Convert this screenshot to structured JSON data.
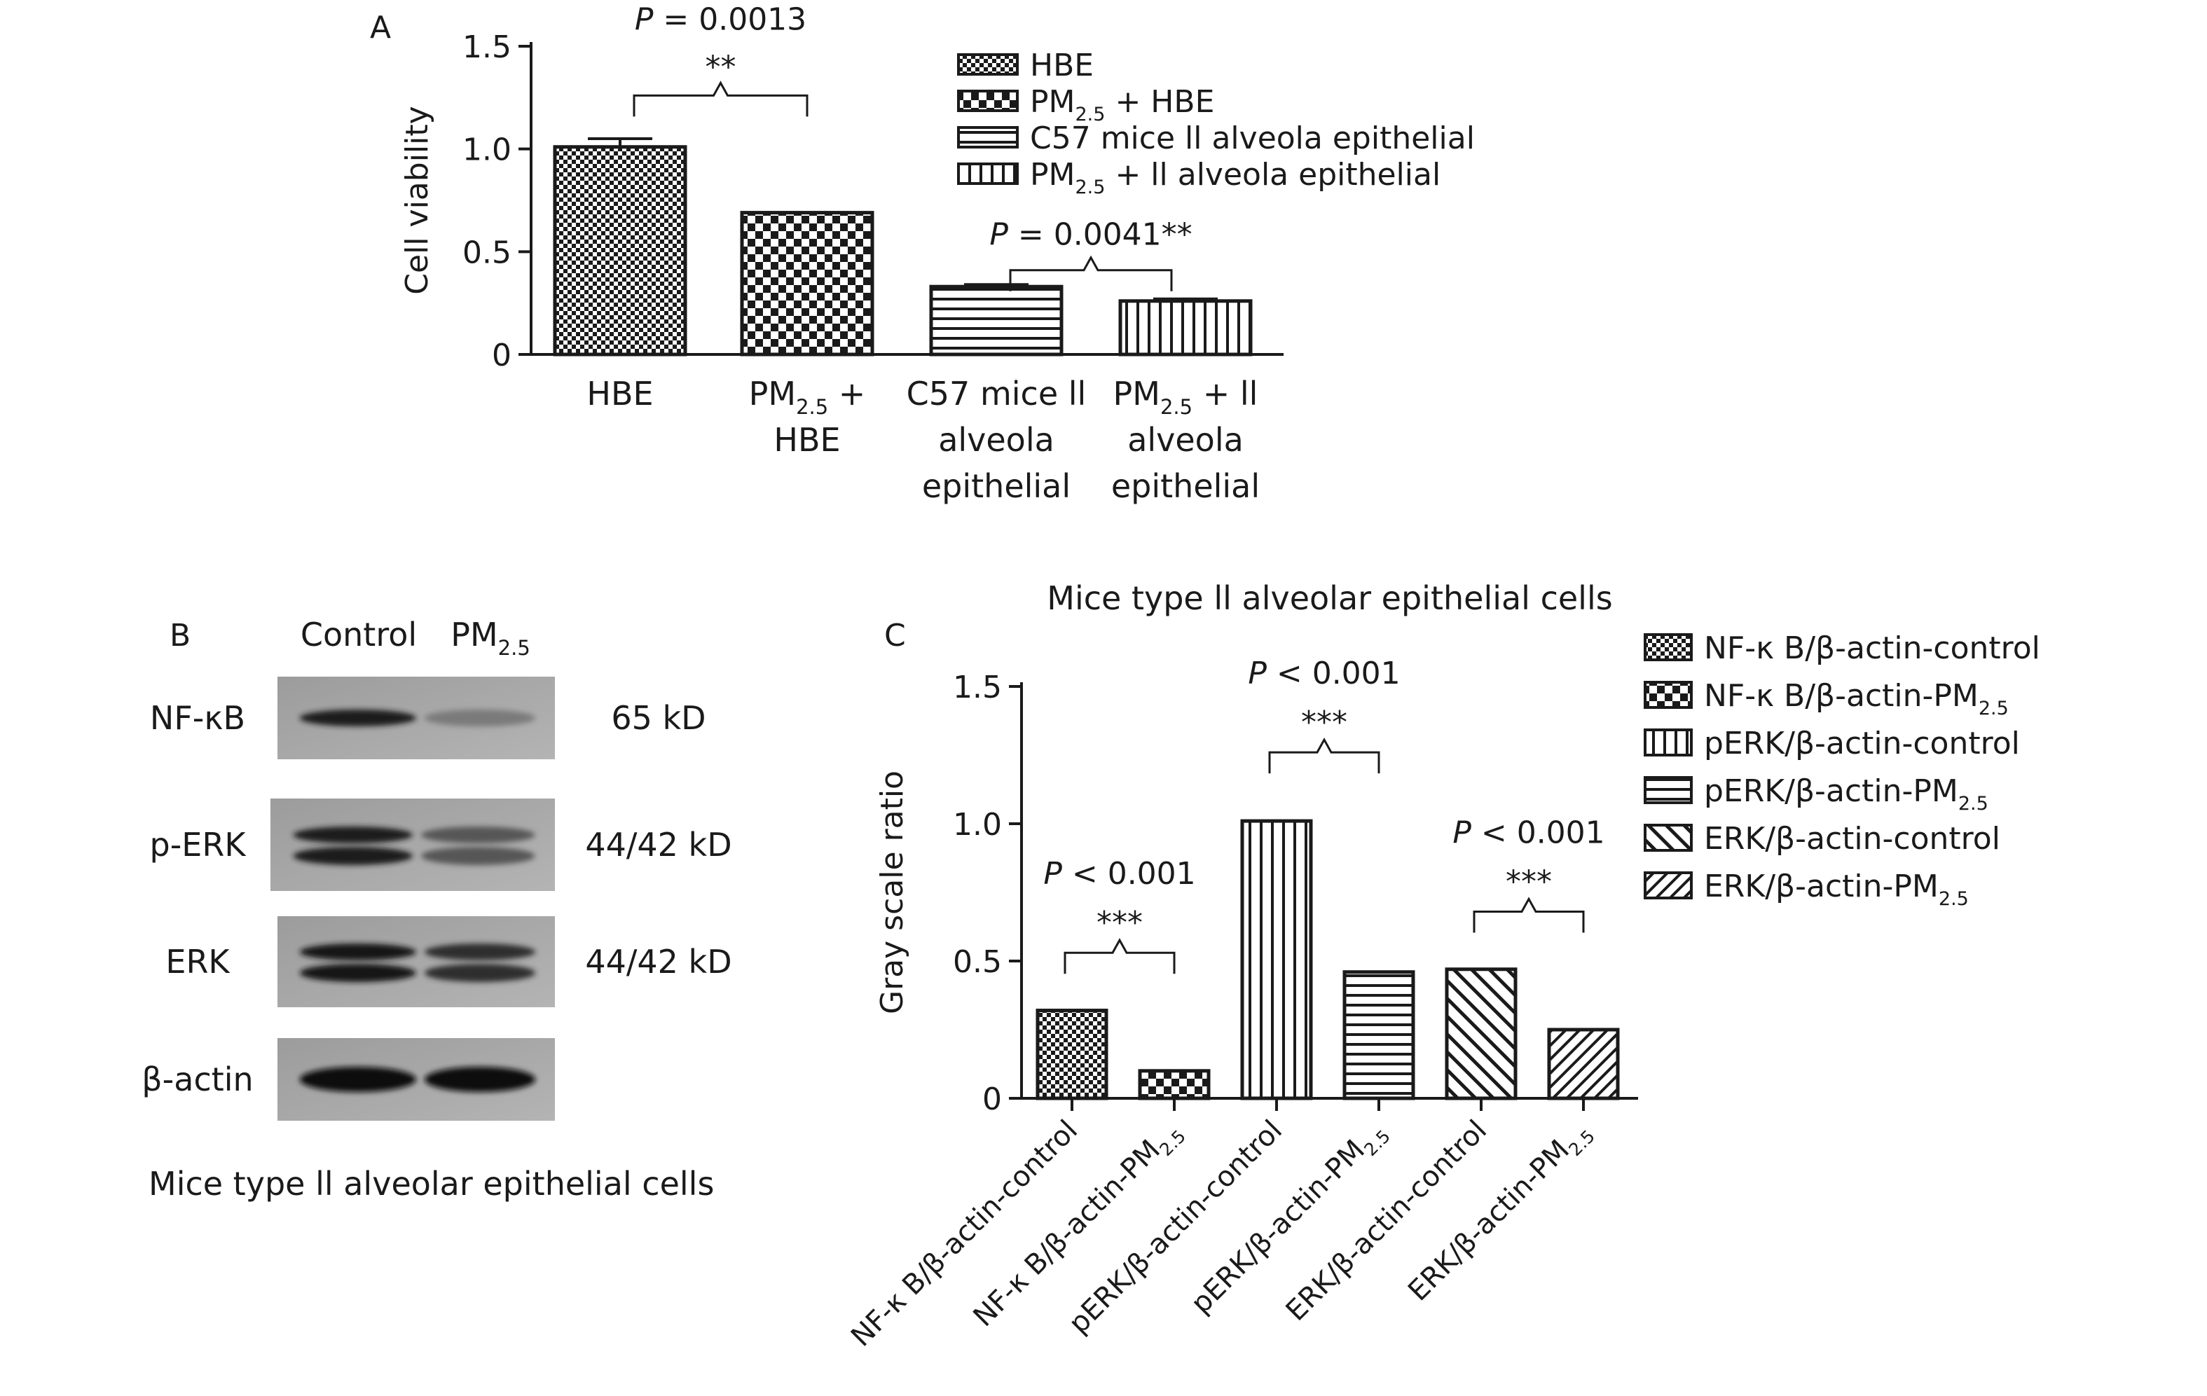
{
  "panels": {
    "a": {
      "letter": "A"
    },
    "b": {
      "letter": "B"
    },
    "c": {
      "letter": "C"
    }
  },
  "chart_data": [
    {
      "id": "panel-a",
      "type": "bar",
      "title": "",
      "xlabel": "",
      "ylabel": "Cell viability",
      "ylim": [
        0,
        1.5
      ],
      "yticks": [
        "0",
        "0.5",
        "1.0",
        "1.5"
      ],
      "ytick_values": [
        0,
        0.5,
        1.0,
        1.5
      ],
      "grid": false,
      "legend_position": "top-right",
      "categories": [
        {
          "id": "hbe",
          "lines": [
            "HBE"
          ],
          "pattern": "checker-fine"
        },
        {
          "id": "pm-hbe",
          "lines": [
            "PM|2.5| +",
            "HBE"
          ],
          "pattern": "checker-large"
        },
        {
          "id": "c57",
          "lines": [
            "C57 mice ll",
            "alveola",
            "epithelial"
          ],
          "pattern": "hstripe"
        },
        {
          "id": "pm-c57",
          "lines": [
            "PM|2.5| + ll",
            "alveola",
            "epithelial"
          ],
          "pattern": "vstripe"
        }
      ],
      "values": [
        1.01,
        0.69,
        0.33,
        0.26
      ],
      "errors": [
        0.04,
        0.0,
        0.01,
        0.01
      ],
      "legend": [
        {
          "label": "HBE",
          "pattern": "checker-fine"
        },
        {
          "label": "PM|2.5| + HBE",
          "pattern": "checker-large"
        },
        {
          "label": "C57 mice ll alveola epithelial",
          "pattern": "hstripe"
        },
        {
          "label": "PM|2.5| + ll alveola epithelial",
          "pattern": "vstripe"
        }
      ],
      "annotations": [
        {
          "between": [
            0,
            1
          ],
          "p_text": "P = 0.0013",
          "stars": "**",
          "bracket_y": 1.26
        },
        {
          "between": [
            2,
            3
          ],
          "p_text": "P = 0.0041",
          "stars": "**",
          "bracket_y": 0.41,
          "inline_stars": true
        }
      ]
    },
    {
      "id": "panel-c",
      "type": "bar",
      "title": "Mice type ll alveolar epithelial cells",
      "xlabel": "",
      "ylabel": "Gray scale ratio",
      "ylim": [
        0,
        1.5
      ],
      "yticks": [
        "0",
        "0.5",
        "1.0",
        "1.5"
      ],
      "ytick_values": [
        0,
        0.5,
        1.0,
        1.5
      ],
      "grid": false,
      "legend_position": "right",
      "categories": [
        {
          "id": "nfkb-control",
          "label": "NF-κ B/β-actin-control",
          "pattern": "checker-fine"
        },
        {
          "id": "nfkb-pm",
          "label": "NF-κ B/β-actin-PM|2.5|",
          "pattern": "checker-large"
        },
        {
          "id": "perk-control",
          "label": "pERK/β-actin-control",
          "pattern": "vstripe"
        },
        {
          "id": "perk-pm",
          "label": "pERK/β-actin-PM|2.5|",
          "pattern": "hstripe"
        },
        {
          "id": "erk-control",
          "label": "ERK/β-actin-control",
          "pattern": "diag-wide"
        },
        {
          "id": "erk-pm",
          "label": "ERK/β-actin-PM|2.5|",
          "pattern": "diag-back"
        }
      ],
      "values": [
        0.32,
        0.1,
        1.01,
        0.46,
        0.47,
        0.25
      ],
      "legend": [
        {
          "label": "NF-κ B/β-actin-control",
          "pattern": "checker-fine"
        },
        {
          "label": "NF-κ B/β-actin-PM|2.5|",
          "pattern": "checker-large"
        },
        {
          "label": "pERK/β-actin-control",
          "pattern": "vstripe"
        },
        {
          "label": "pERK/β-actin-PM|2.5|",
          "pattern": "hstripe"
        },
        {
          "label": "ERK/β-actin-control",
          "pattern": "diag-wide"
        },
        {
          "label": "ERK/β-actin-PM|2.5|",
          "pattern": "diag-back"
        }
      ],
      "annotations": [
        {
          "between": [
            0,
            1
          ],
          "p_text": "P < 0.001",
          "stars": "***",
          "bracket_y": 0.53
        },
        {
          "between": [
            2,
            3
          ],
          "p_text": "P < 0.001",
          "stars": "***",
          "bracket_y": 1.26
        },
        {
          "between": [
            4,
            5
          ],
          "p_text": "P < 0.001",
          "stars": "***",
          "bracket_y": 0.68
        }
      ]
    }
  ],
  "blot": {
    "columns": [
      "Control",
      "PM|2.5|"
    ],
    "rows": [
      {
        "protein": "NF-κB",
        "size": "65 kD",
        "control_intensity": 0.85,
        "pm_intensity": 0.2,
        "doublet": false
      },
      {
        "protein": "p-ERK",
        "size": "44/42 kD",
        "control_intensity": 0.85,
        "pm_intensity": 0.45,
        "doublet": true
      },
      {
        "protein": "ERK",
        "size": "44/42 kD",
        "control_intensity": 0.9,
        "pm_intensity": 0.75,
        "doublet": true
      },
      {
        "protein": "β-actin",
        "size": "",
        "control_intensity": 0.95,
        "pm_intensity": 0.95,
        "doublet": false
      }
    ],
    "caption": "Mice type ll alveolar epithelial cells"
  }
}
